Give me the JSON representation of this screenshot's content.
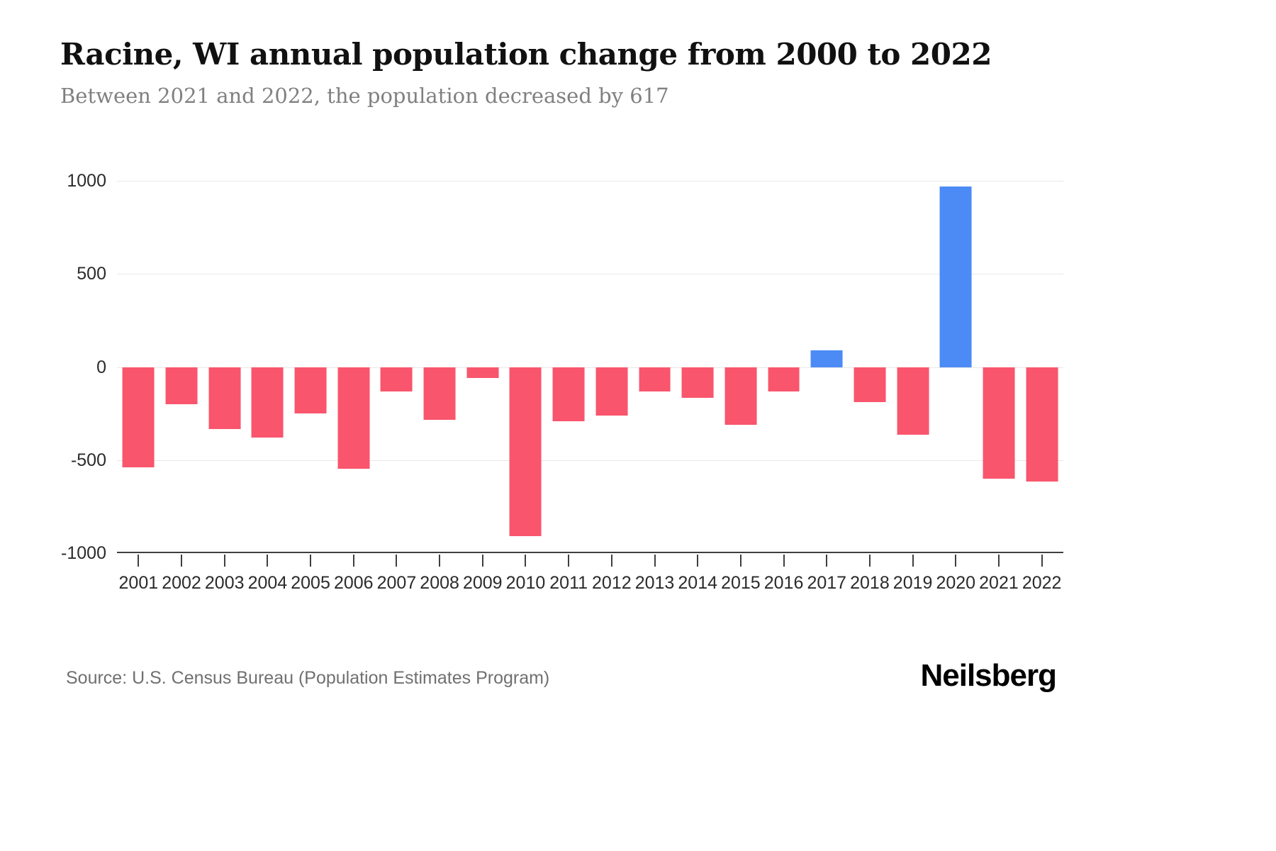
{
  "header": {
    "title": "Racine, WI annual population change from 2000 to 2022",
    "subtitle": "Between 2021 and 2022, the population decreased by 617"
  },
  "footer": {
    "source": "Source: U.S. Census Bureau (Population Estimates Program)",
    "brand": "Neilsberg"
  },
  "chart_data": {
    "type": "bar",
    "title": "Racine, WI annual population change from 2000 to 2022",
    "subtitle": "Between 2021 and 2022, the population decreased by 617",
    "categories": [
      "2001",
      "2002",
      "2003",
      "2004",
      "2005",
      "2006",
      "2007",
      "2008",
      "2009",
      "2010",
      "2011",
      "2012",
      "2013",
      "2014",
      "2015",
      "2016",
      "2017",
      "2018",
      "2019",
      "2020",
      "2021",
      "2022"
    ],
    "values": [
      -540,
      -200,
      -335,
      -380,
      -250,
      -545,
      -130,
      -285,
      -60,
      -910,
      -290,
      -260,
      -130,
      -165,
      -310,
      -130,
      90,
      -190,
      -365,
      970,
      -600,
      -617
    ],
    "xlabel": "",
    "ylabel": "",
    "ylim": [
      -1000,
      1000
    ],
    "yticks": [
      1000,
      500,
      0,
      -500,
      -1000
    ],
    "grid": true,
    "legend": false,
    "colors": {
      "positive": "#4c8bf5",
      "negative": "#f9556d",
      "gridline": "#e8e8e8",
      "axis": "#3f3f3f"
    }
  }
}
